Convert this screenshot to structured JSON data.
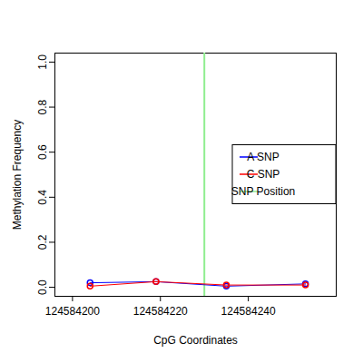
{
  "chart_data": {
    "type": "line",
    "x_label": "CpG Coordinates",
    "y_label": "Methylation Frequency",
    "x": [
      124584204,
      124584219,
      124584235,
      124584253
    ],
    "series": [
      {
        "name": "A SNP",
        "color": "#0000ff",
        "values": [
          0.02,
          0.025,
          0.005,
          0.015
        ],
        "marker": "circle",
        "line_style": "solid"
      },
      {
        "name": "C SNP",
        "color": "#ff0000",
        "values": [
          0.005,
          0.025,
          0.01,
          0.01
        ],
        "marker": "circle",
        "line_style": "solid"
      }
    ],
    "snp_position": {
      "name": "SNP Position",
      "x": 124584230,
      "color": "#90ee90"
    },
    "xlim": [
      124584196,
      124584260
    ],
    "xticks": [
      124584200,
      124584220,
      124584240
    ],
    "ylim": [
      -0.04,
      1.04
    ],
    "yticks": [
      {
        "value": 0,
        "label": "0.0"
      },
      {
        "value": 0.2,
        "label": "0.2"
      },
      {
        "value": 0.4,
        "label": "0.4"
      },
      {
        "value": 0.6,
        "label": "0.6"
      },
      {
        "value": 0.8,
        "label": "0.8"
      },
      {
        "value": 1,
        "label": "1.0"
      }
    ],
    "legend": "right",
    "grid": false
  }
}
